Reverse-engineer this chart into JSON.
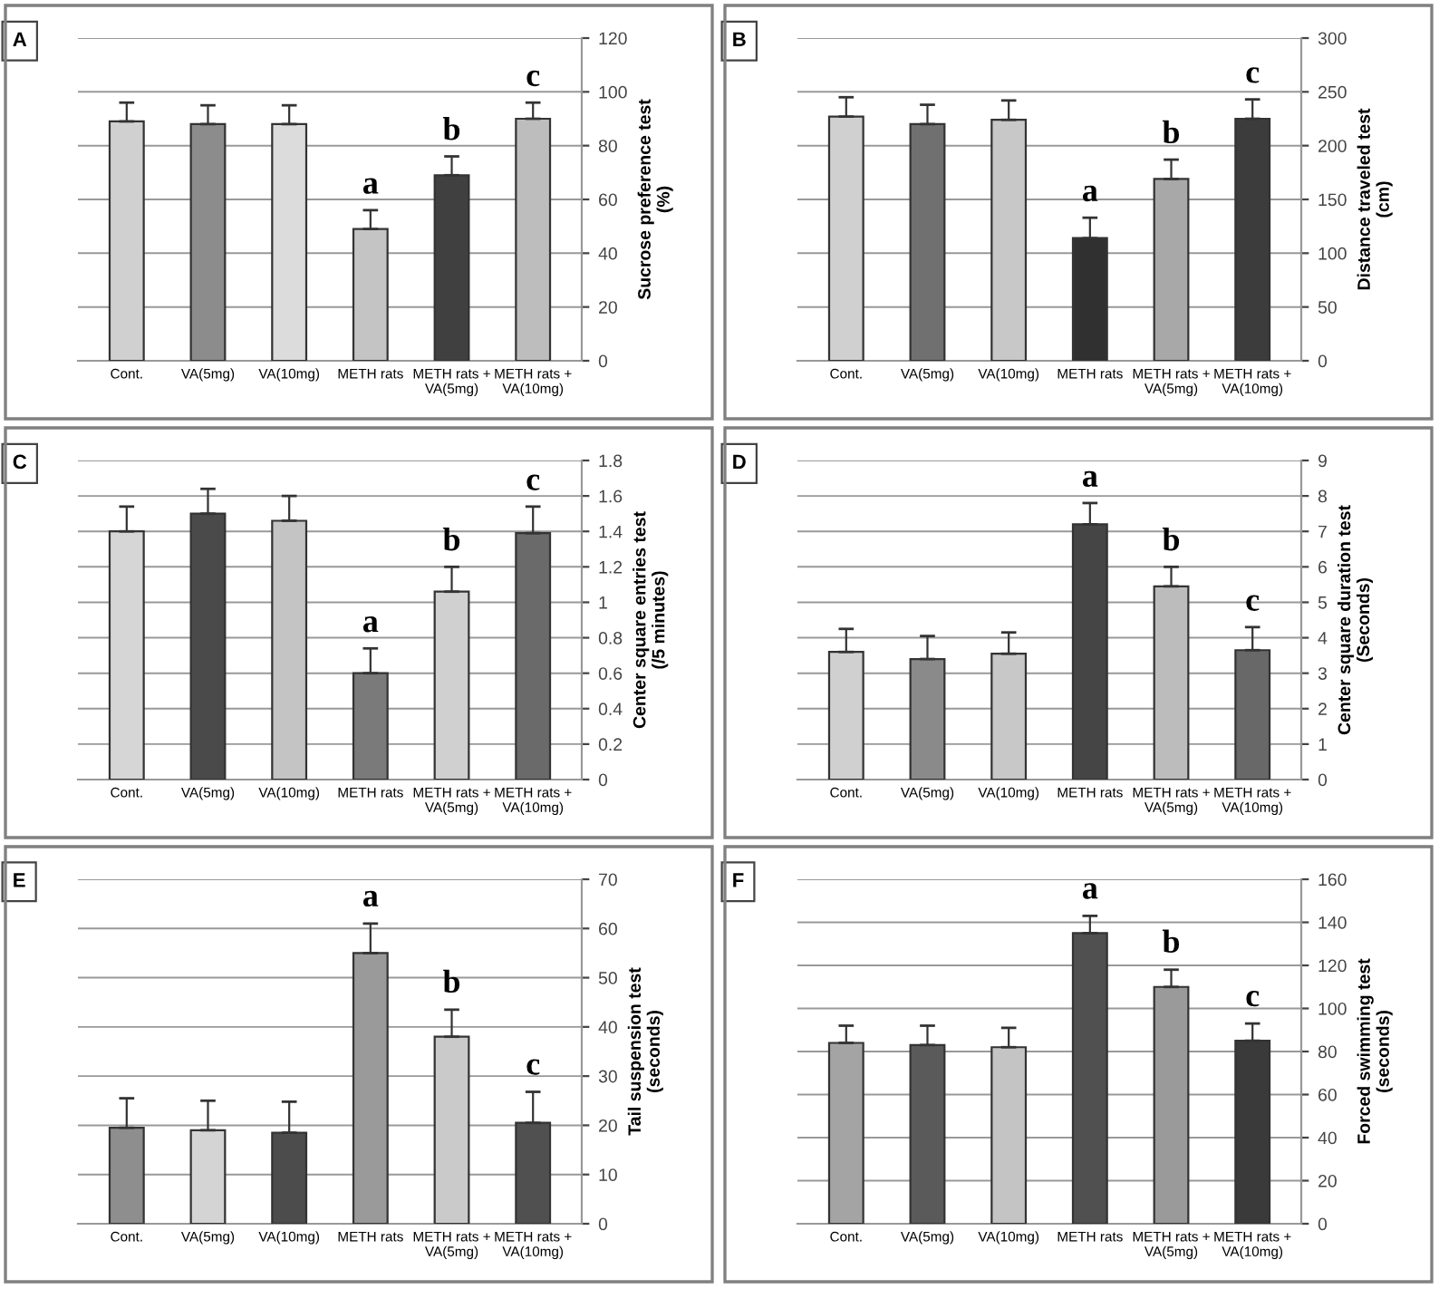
{
  "chart_data": [
    {
      "type": "bar",
      "title": "A",
      "ylabel": "Sucrose preference test\n(%)",
      "categories": [
        "Cont.",
        "VA(5mg)",
        "VA(10mg)",
        "METH rats",
        "METH rats +\nVA(5mg)",
        "METH rats +\nVA(10mg)"
      ],
      "values": [
        89,
        88,
        88,
        49,
        69,
        90
      ],
      "colors": [
        "#d0d0d0",
        "#8c8c8c",
        "#dcdcdc",
        "#c4c4c4",
        "#404040",
        "#bdbdbd"
      ],
      "errors": [
        [
          89,
          96
        ],
        [
          88,
          95
        ],
        [
          88,
          95
        ],
        [
          49,
          56
        ],
        [
          69,
          76
        ],
        [
          90,
          96
        ]
      ],
      "ylim": [
        0,
        120
      ],
      "yticks": [
        0,
        20,
        40,
        60,
        80,
        100,
        120
      ],
      "grid": "y",
      "annotations": [
        "a",
        "b",
        "c"
      ]
    },
    {
      "type": "bar",
      "title": "B",
      "ylabel": "Distance traveled test\n(cm)",
      "categories": [
        "Cont.",
        "VA(5mg)",
        "VA(10mg)",
        "METH rats",
        "METH rats +\nVA(5mg)",
        "METH rats +\nVA(10mg)"
      ],
      "values": [
        227,
        220,
        224,
        114,
        169,
        225
      ],
      "colors": [
        "#d0d0d0",
        "#707070",
        "#c8c8c8",
        "#303030",
        "#a8a8a8",
        "#3c3c3c"
      ],
      "errors": [
        [
          227,
          245
        ],
        [
          220,
          238
        ],
        [
          224,
          242
        ],
        [
          114,
          133
        ],
        [
          169,
          187
        ],
        [
          225,
          243
        ]
      ],
      "ylim": [
        0,
        300
      ],
      "yticks": [
        0,
        50,
        100,
        150,
        200,
        250,
        300
      ],
      "grid": "y",
      "annotations": [
        "a",
        "b",
        "c"
      ]
    },
    {
      "type": "bar",
      "title": "C",
      "ylabel": "Center square entries test\n(/5 minutes)",
      "categories": [
        "Cont.",
        "VA(5mg)",
        "VA(10mg)",
        "METH rats",
        "METH rats +\nVA(5mg)",
        "METH rats +\nVA(10mg)"
      ],
      "values": [
        1.4,
        1.5,
        1.46,
        0.6,
        1.06,
        1.39
      ],
      "colors": [
        "#d6d6d6",
        "#4a4a4a",
        "#c4c4c4",
        "#7a7a7a",
        "#d0d0d0",
        "#6a6a6a"
      ],
      "errors": [
        [
          1.4,
          1.54
        ],
        [
          1.5,
          1.64
        ],
        [
          1.46,
          1.6
        ],
        [
          0.6,
          0.74
        ],
        [
          1.06,
          1.2
        ],
        [
          1.39,
          1.54
        ]
      ],
      "ylim": [
        0,
        1.8
      ],
      "yticks": [
        0,
        0.2,
        0.4,
        0.6,
        0.8,
        1,
        1.2,
        1.4,
        1.6,
        1.8
      ],
      "grid": "y",
      "annotations": [
        "a",
        "b",
        "c"
      ]
    },
    {
      "type": "bar",
      "title": "D",
      "ylabel": "Center square duration test\n(Seconds)",
      "categories": [
        "Cont.",
        "VA(5mg)",
        "VA(10mg)",
        "METH rats",
        "METH rats +\nVA(5mg)",
        "METH rats +\nVA(10mg)"
      ],
      "values": [
        3.6,
        3.4,
        3.55,
        7.2,
        5.45,
        3.65
      ],
      "colors": [
        "#d0d0d0",
        "#8a8a8a",
        "#c8c8c8",
        "#454545",
        "#bcbcbc",
        "#686868"
      ],
      "errors": [
        [
          3.6,
          4.25
        ],
        [
          3.4,
          4.05
        ],
        [
          3.55,
          4.15
        ],
        [
          7.2,
          7.8
        ],
        [
          5.45,
          6.0
        ],
        [
          3.65,
          4.3
        ]
      ],
      "ylim": [
        0,
        9
      ],
      "yticks": [
        0,
        1,
        2,
        3,
        4,
        5,
        6,
        7,
        8,
        9
      ],
      "grid": "y",
      "annotations": [
        "a",
        "b",
        "c"
      ]
    },
    {
      "type": "bar",
      "title": "E",
      "ylabel": "Tail suspension test\n(seconds)",
      "categories": [
        "Cont.",
        "VA(5mg)",
        "VA(10mg)",
        "METH rats",
        "METH rats +\nVA(5mg)",
        "METH rats +\nVA(10mg)"
      ],
      "values": [
        19.5,
        19,
        18.5,
        55,
        38,
        20.5
      ],
      "colors": [
        "#8e8e8e",
        "#d4d4d4",
        "#4c4c4c",
        "#9a9a9a",
        "#cacaca",
        "#505050"
      ],
      "errors": [
        [
          19.5,
          25.5
        ],
        [
          19,
          25
        ],
        [
          18.5,
          24.8
        ],
        [
          55,
          61
        ],
        [
          38,
          43.5
        ],
        [
          20.5,
          26.8
        ]
      ],
      "ylim": [
        0,
        70
      ],
      "yticks": [
        0,
        10,
        20,
        30,
        40,
        50,
        60,
        70
      ],
      "grid": "y",
      "annotations": [
        "a",
        "b",
        "c"
      ]
    },
    {
      "type": "bar",
      "title": "F",
      "ylabel": "Forced swimming test\n(seconds)",
      "categories": [
        "Cont.",
        "VA(5mg)",
        "VA(10mg)",
        "METH rats",
        "METH rats +\nVA(5mg)",
        "METH rats +\nVA(10mg)"
      ],
      "values": [
        84,
        83,
        82,
        135,
        110,
        85
      ],
      "colors": [
        "#a4a4a4",
        "#5a5a5a",
        "#c4c4c4",
        "#505050",
        "#9a9a9a",
        "#3a3a3a"
      ],
      "errors": [
        [
          84,
          92
        ],
        [
          83,
          92
        ],
        [
          82,
          91
        ],
        [
          135,
          143
        ],
        [
          110,
          118
        ],
        [
          85,
          93
        ]
      ],
      "ylim": [
        0,
        160
      ],
      "yticks": [
        0,
        20,
        40,
        60,
        80,
        100,
        120,
        140,
        160
      ],
      "grid": "y",
      "annotations": [
        "a",
        "b",
        "c"
      ]
    }
  ]
}
